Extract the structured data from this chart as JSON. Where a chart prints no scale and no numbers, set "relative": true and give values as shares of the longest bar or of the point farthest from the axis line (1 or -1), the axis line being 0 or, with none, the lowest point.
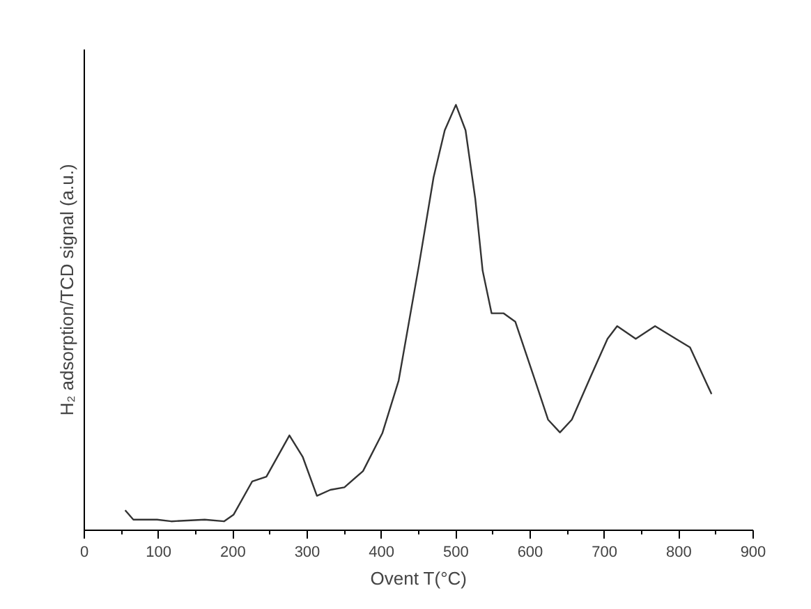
{
  "chart_data": {
    "type": "line",
    "xlabel": "Ovent T(°C)",
    "ylabel": "H₂ adsorption/TCD signal (a.u.)",
    "relative": true,
    "xlim": [
      0,
      900
    ],
    "xticks": [
      0,
      100,
      200,
      300,
      400,
      500,
      600,
      700,
      800,
      900
    ],
    "grid": false,
    "series": [
      {
        "color": "#333333",
        "x": [
          55,
          66,
          98,
          117,
          162,
          188,
          201,
          226,
          245,
          276,
          294,
          313,
          331,
          350,
          375,
          401,
          423,
          450,
          470,
          485,
          500,
          513,
          526,
          536,
          548,
          564,
          580,
          605,
          624,
          640,
          656,
          681,
          704,
          717,
          742,
          768,
          796,
          815,
          844
        ],
        "values": [
          0.047,
          0.025,
          0.025,
          0.021,
          0.025,
          0.021,
          0.037,
          0.115,
          0.126,
          0.223,
          0.172,
          0.081,
          0.095,
          0.101,
          0.139,
          0.228,
          0.352,
          0.62,
          0.83,
          0.94,
          1,
          0.94,
          0.78,
          0.61,
          0.51,
          0.51,
          0.49,
          0.36,
          0.26,
          0.23,
          0.26,
          0.36,
          0.45,
          0.48,
          0.45,
          0.48,
          0.45,
          0.43,
          0.32
        ]
      }
    ]
  }
}
